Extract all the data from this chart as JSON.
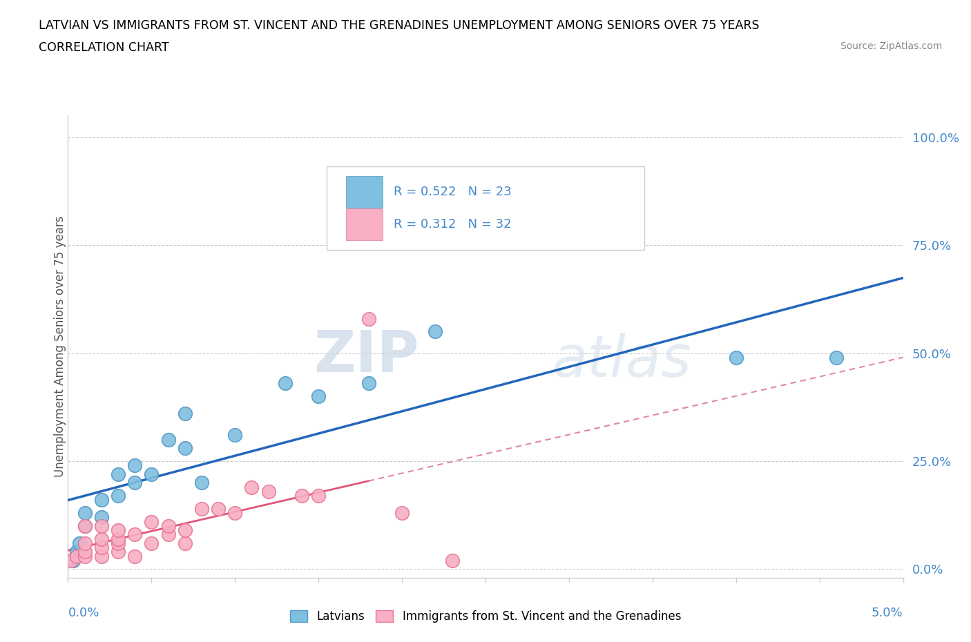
{
  "title_line1": "LATVIAN VS IMMIGRANTS FROM ST. VINCENT AND THE GRENADINES UNEMPLOYMENT AMONG SENIORS OVER 75 YEARS",
  "title_line2": "CORRELATION CHART",
  "source": "Source: ZipAtlas.com",
  "ylabel": "Unemployment Among Seniors over 75 years",
  "y_ticks": [
    "0.0%",
    "25.0%",
    "50.0%",
    "75.0%",
    "100.0%"
  ],
  "y_tick_vals": [
    0.0,
    0.25,
    0.5,
    0.75,
    1.0
  ],
  "x_range": [
    0.0,
    0.05
  ],
  "y_range": [
    -0.02,
    1.05
  ],
  "latvian_color": "#7fbfdf",
  "latvian_edge_color": "#5599c8",
  "immigrant_color": "#f8afc3",
  "immigrant_edge_color": "#e87898",
  "latvian_line_color": "#2266bb",
  "immigrant_line_color": "#e05577",
  "immigrant_dash_color": "#e08899",
  "R_latvian": 0.522,
  "N_latvian": 23,
  "R_immigrant": 0.312,
  "N_immigrant": 32,
  "legend_label1": "Latvians",
  "legend_label2": "Immigrants from St. Vincent and the Grenadines",
  "watermark_zip": "ZIP",
  "watermark_atlas": "atlas",
  "latvian_x": [
    0.0003,
    0.0005,
    0.0007,
    0.001,
    0.001,
    0.002,
    0.002,
    0.003,
    0.003,
    0.004,
    0.004,
    0.005,
    0.006,
    0.007,
    0.007,
    0.008,
    0.01,
    0.013,
    0.015,
    0.018,
    0.022,
    0.04,
    0.046
  ],
  "latvian_y": [
    0.02,
    0.04,
    0.06,
    0.1,
    0.13,
    0.12,
    0.16,
    0.17,
    0.22,
    0.2,
    0.24,
    0.22,
    0.3,
    0.28,
    0.36,
    0.2,
    0.31,
    0.43,
    0.4,
    0.43,
    0.55,
    0.49,
    0.49
  ],
  "immigrant_x": [
    0.0002,
    0.0005,
    0.001,
    0.001,
    0.001,
    0.001,
    0.002,
    0.002,
    0.002,
    0.002,
    0.003,
    0.003,
    0.003,
    0.003,
    0.004,
    0.004,
    0.005,
    0.005,
    0.006,
    0.006,
    0.007,
    0.007,
    0.008,
    0.009,
    0.01,
    0.011,
    0.012,
    0.014,
    0.015,
    0.018,
    0.02,
    0.023
  ],
  "immigrant_y": [
    0.02,
    0.03,
    0.03,
    0.04,
    0.06,
    0.1,
    0.03,
    0.05,
    0.07,
    0.1,
    0.04,
    0.06,
    0.07,
    0.09,
    0.03,
    0.08,
    0.06,
    0.11,
    0.08,
    0.1,
    0.06,
    0.09,
    0.14,
    0.14,
    0.13,
    0.19,
    0.18,
    0.17,
    0.17,
    0.58,
    0.13,
    0.02
  ]
}
